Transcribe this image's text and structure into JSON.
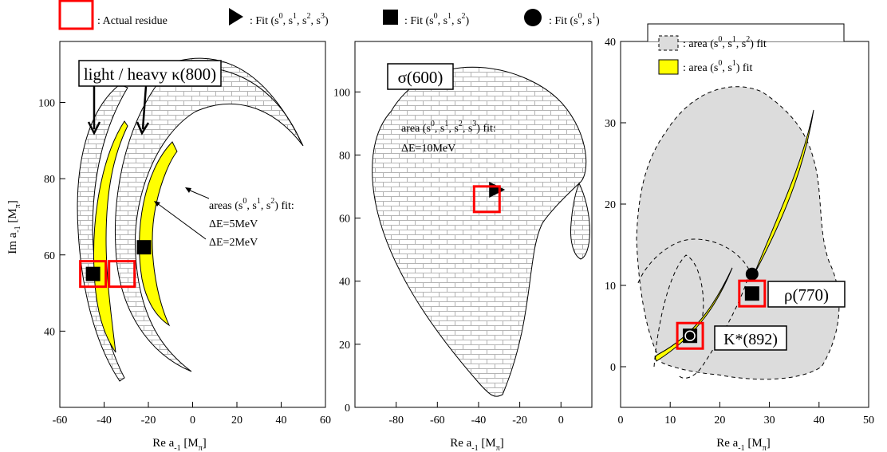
{
  "chart_data": [
    {
      "type": "area",
      "panel": "left",
      "xlabel": "Re a",
      "xlabel_sub": "-1",
      "xlabel_unit": "[M",
      "xlabel_unit_sub": "π",
      "xlabel_close": "]",
      "ylabel": "Im a",
      "ylabel_sub": "-1",
      "ylabel_unit": "[M",
      "ylabel_unit_sub": "π",
      "ylabel_close": "]",
      "xlim": [
        -60,
        60
      ],
      "ylim": [
        20,
        116
      ],
      "xticks": [
        -60,
        -40,
        -20,
        0,
        20,
        40,
        60
      ],
      "yticks": [
        40,
        60,
        80,
        100
      ],
      "grid": false,
      "title_box": "light / heavy κ(800)",
      "annotations": {
        "areas_line1_pre": "areas (s",
        "areas_line1_post": ") fit:",
        "de5": "ΔE=5MeV",
        "de2": "ΔE=2MeV"
      },
      "points": {
        "squares": [
          {
            "x": -45,
            "y": 55
          },
          {
            "x": -22,
            "y": 62
          }
        ],
        "residues": [
          {
            "x": -45,
            "y": 55
          },
          {
            "x": -32,
            "y": 55
          }
        ]
      }
    },
    {
      "type": "area",
      "panel": "middle",
      "xlabel": "Re a",
      "xlabel_sub": "-1",
      "xlabel_unit": "[M",
      "xlabel_unit_sub": "π",
      "xlabel_close": "]",
      "xlim": [
        -100,
        15
      ],
      "ylim": [
        0,
        116
      ],
      "xticks": [
        -80,
        -60,
        -40,
        -20,
        0
      ],
      "yticks": [
        0,
        20,
        40,
        60,
        80,
        100
      ],
      "grid": false,
      "title_box": "σ(600)",
      "annotations": {
        "area_pre": "area (s",
        "area_post": ") fit:",
        "de": "ΔE=10MeV"
      },
      "points": {
        "triangles": [
          {
            "x": -31,
            "y": 69
          }
        ],
        "residues": [
          {
            "x": -36,
            "y": 66
          }
        ]
      }
    },
    {
      "type": "area",
      "panel": "right",
      "xlabel": "Re a",
      "xlabel_sub": "-1",
      "xlabel_unit": "[M",
      "xlabel_unit_sub": "π",
      "xlabel_close": "]",
      "xlim": [
        0,
        50
      ],
      "ylim": [
        -5,
        40
      ],
      "xticks": [
        0,
        10,
        20,
        30,
        40,
        50
      ],
      "yticks": [
        0,
        10,
        20,
        30,
        40
      ],
      "grid": false,
      "labels": {
        "rho": "ρ(770)",
        "kstar": "K*(892)"
      },
      "legend": [
        {
          "pre": ": area (s",
          "post": ") fit",
          "sups": [
            "0",
            "1",
            "2"
          ],
          "style": "gray dashed"
        },
        {
          "pre": ": area (s",
          "post": ") fit",
          "sups": [
            "0",
            "1"
          ],
          "style": "yellow"
        }
      ],
      "points": {
        "squares": [
          {
            "x": 26.5,
            "y": 9
          },
          {
            "x": 14,
            "y": 3.8
          }
        ],
        "circles": [
          {
            "x": 26.5,
            "y": 11.4
          },
          {
            "x": 14,
            "y": 3.8
          }
        ],
        "residues": [
          {
            "x": 26.5,
            "y": 9
          },
          {
            "x": 14,
            "y": 3.8
          }
        ]
      }
    }
  ],
  "legend_top": [
    {
      "label": ": Actual residue",
      "marker": "red-open-square"
    },
    {
      "label_pre": ": Fit (s",
      "sups": [
        "0",
        "1",
        "2",
        "3"
      ],
      "label_post": ")",
      "marker": "black-triangle"
    },
    {
      "label_pre": ": Fit (s",
      "sups": [
        "0",
        "1",
        "2"
      ],
      "label_post": ")",
      "marker": "black-square"
    },
    {
      "label_pre": ": Fit (s",
      "sups": [
        "0",
        "1"
      ],
      "label_post": ")",
      "marker": "black-circle"
    }
  ],
  "colors": {
    "residue": "#ff0000",
    "yellow": "#ffff00",
    "gray": "#dcdcdc",
    "brick": "#b4b4b4"
  }
}
